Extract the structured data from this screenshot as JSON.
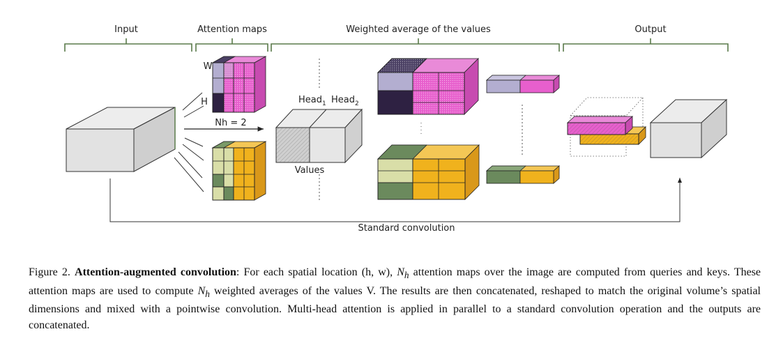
{
  "figure": {
    "sections": {
      "input": "Input",
      "attention_maps": "Attention maps",
      "weighted_average": "Weighted average of the values",
      "output": "Output"
    },
    "labels": {
      "w": "W",
      "h": "H",
      "nh": "Nh = 2",
      "head1": "Head",
      "head1_sub": "1",
      "head2": "Head",
      "head2_sub": "2",
      "values": "Values",
      "standard_convolution": "Standard convolution"
    },
    "colors": {
      "magenta": "#e75fcd",
      "lavender": "#b3aed0",
      "dark_purple": "#2e2142",
      "orange": "#f0b21d",
      "olive_light": "#d9dea8",
      "olive_green": "#6b8a5d",
      "grey_box": "#e0e0e0",
      "bracket_green": "#5a7a4a"
    }
  },
  "caption": {
    "figure_number": "Figure 2.",
    "title": "Attention-augmented convolution",
    "text_a": ": For each spatial location (h, w), ",
    "nh_1": "N",
    "nh_1_sub": "h",
    "text_b": " attention maps over the image are computed from queries and keys.  These attention maps are used to compute ",
    "nh_2": "N",
    "nh_2_sub": "h",
    "text_c": " weighted averages of the values V. The results are then concatenated, reshaped to match the original volume’s spatial dimensions and mixed with a pointwise convolution.  Multi-head attention is applied in parallel to a standard convolution operation and the outputs are concatenated."
  }
}
